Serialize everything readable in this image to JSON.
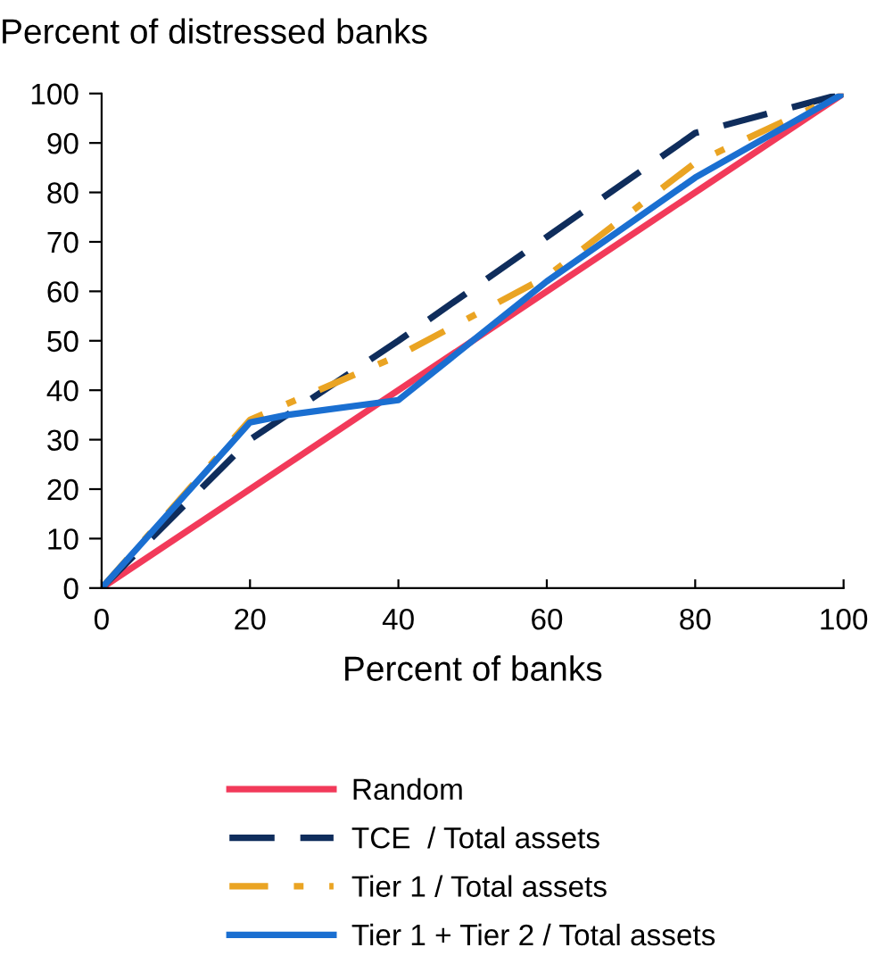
{
  "chart_data": {
    "type": "line",
    "ylabel": "Percent of distressed banks",
    "xlabel": "Percent of banks",
    "xlim": [
      0,
      100
    ],
    "xticks": [
      0,
      20,
      40,
      60,
      80,
      100
    ],
    "ylim": [
      0,
      100
    ],
    "yticks": [
      0,
      10,
      20,
      30,
      40,
      50,
      60,
      70,
      80,
      90,
      100
    ],
    "grid": false,
    "legend": "bottom",
    "marker": "none",
    "series": [
      {
        "name": "Random",
        "color": "#f23a5a",
        "line_style": "solid",
        "x": [
          0,
          100
        ],
        "values": [
          0,
          100
        ]
      },
      {
        "name": "TCE  / Total assets",
        "color": "#0f2d5c",
        "line_style": "dashed",
        "x": [
          0,
          20,
          40,
          60,
          80,
          100
        ],
        "values": [
          0,
          30,
          50,
          71,
          92,
          100
        ]
      },
      {
        "name": "Tier 1 / Total assets",
        "color": "#eaa423",
        "line_style": "dashdot",
        "x": [
          0,
          20,
          40,
          60,
          80,
          100
        ],
        "values": [
          0,
          34,
          47,
          63,
          86,
          100
        ]
      },
      {
        "name": "Tier 1 + Tier 2 / Total assets",
        "color": "#1a6fd1",
        "line_style": "solid",
        "x": [
          0,
          20,
          25,
          40,
          60,
          80,
          100
        ],
        "values": [
          0,
          33.5,
          35,
          38,
          62,
          83,
          100
        ]
      }
    ]
  }
}
